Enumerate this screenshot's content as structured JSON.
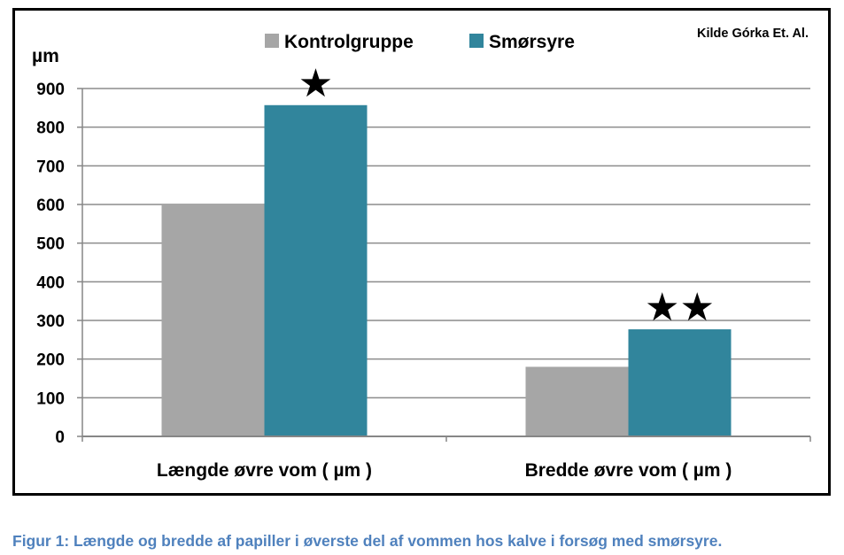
{
  "chart_data": {
    "type": "bar",
    "categories": [
      "Længde øvre vom ( µm )",
      "Bredde øvre vom ( µm )"
    ],
    "series": [
      {
        "name": "Kontrolgruppe",
        "values": [
          600,
          180
        ],
        "color": "#A6A6A6"
      },
      {
        "name": "Smørsyre",
        "values": [
          857,
          277
        ],
        "color": "#31859C"
      }
    ],
    "ylabel": "µm",
    "ylim": [
      0,
      900
    ],
    "yticks": [
      0,
      100,
      200,
      300,
      400,
      500,
      600,
      700,
      800,
      900
    ],
    "grid": true,
    "legend_position": "top",
    "annotations": [
      {
        "category": 0,
        "series": 1,
        "text": "★"
      },
      {
        "category": 1,
        "series": 1,
        "text": "★★"
      }
    ],
    "source_note": "Kilde Górka Et. Al."
  },
  "caption": "Figur 1: Længde og bredde af papiller i øverste del af vommen hos kalve i forsøg med smørsyre.",
  "colors": {
    "caption": "#4F81BD",
    "grid": "#8C8C8C",
    "axis": "#868686"
  }
}
